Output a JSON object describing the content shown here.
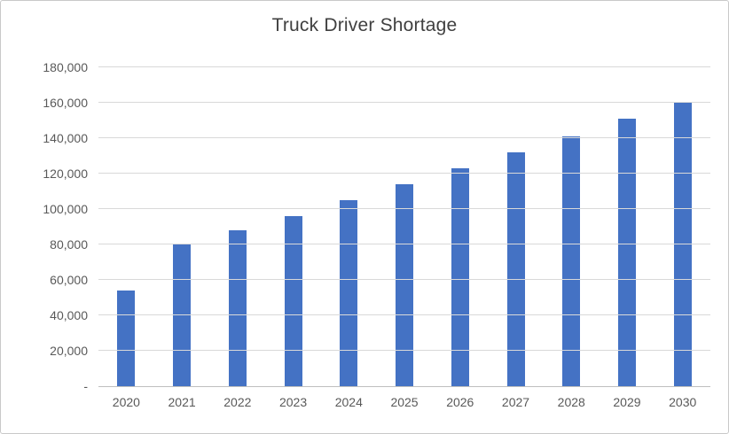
{
  "chart_data": {
    "type": "bar",
    "title": "Truck Driver Shortage",
    "categories": [
      "2020",
      "2021",
      "2022",
      "2023",
      "2024",
      "2025",
      "2026",
      "2027",
      "2028",
      "2029",
      "2030"
    ],
    "values": [
      54000,
      80000,
      88000,
      96000,
      105000,
      114000,
      123000,
      132000,
      141000,
      151000,
      160500
    ],
    "xlabel": "",
    "ylabel": "",
    "ylim": [
      0,
      180000
    ],
    "ytick_step": 20000,
    "ytick_labels": [
      "-",
      "20,000",
      "40,000",
      "60,000",
      "80,000",
      "100,000",
      "120,000",
      "140,000",
      "160,000",
      "180,000"
    ],
    "grid": true,
    "legend": false,
    "bar_color": "#4472C4",
    "gridline_color": "#D9D9D9",
    "axis_line_color": "#BFBFBF",
    "axis_text_color": "#595959",
    "title_color": "#404040"
  }
}
